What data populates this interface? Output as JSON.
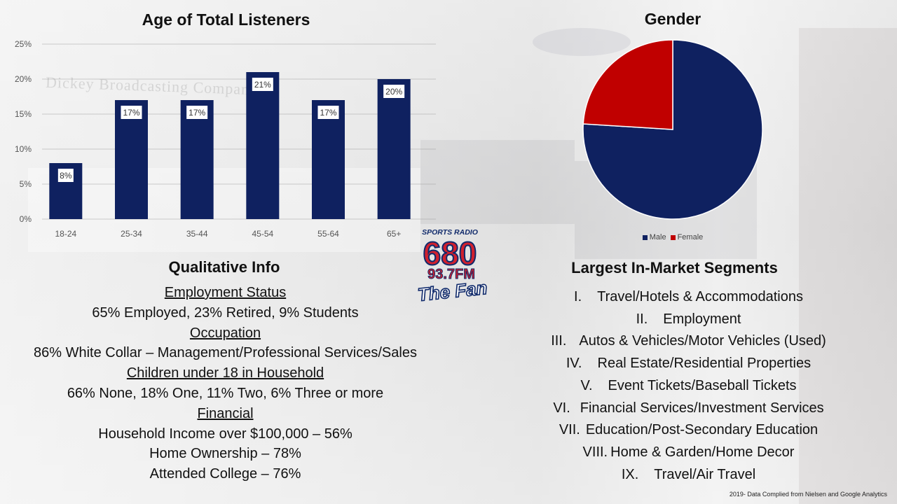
{
  "background_watermark": "Dickey Broadcasting Company",
  "chart_data": [
    {
      "type": "bar",
      "title": "Age of Total Listeners",
      "categories": [
        "18-24",
        "25-34",
        "35-44",
        "45-54",
        "55-64",
        "65+"
      ],
      "values": [
        8,
        17,
        17,
        21,
        17,
        20
      ],
      "data_labels": [
        "8%",
        "17%",
        "17%",
        "21%",
        "17%",
        "20%"
      ],
      "yticks": [
        "0%",
        "5%",
        "10%",
        "15%",
        "20%",
        "25%"
      ],
      "ylim": [
        0,
        25
      ],
      "grid": true,
      "color": "#0f2160"
    },
    {
      "type": "pie",
      "title": "Gender",
      "labels": [
        "Male",
        "Female"
      ],
      "values": [
        76,
        24
      ],
      "colors": [
        "#0f2160",
        "#c00000"
      ],
      "legend_position": "bottom"
    }
  ],
  "qualitative": {
    "heading": "Qualitative Info",
    "employment_heading": "Employment Status",
    "employment": "65% Employed, 23% Retired, 9% Students",
    "occupation_heading": "Occupation",
    "occupation": "86% White Collar – Management/Professional Services/Sales",
    "children_heading": "Children under 18 in Household",
    "children": "66% None, 18% One, 11% Two, 6% Three or more",
    "financial_heading": "Financial",
    "income": "Household Income over $100,000 – 56%",
    "home": "Home Ownership – 78%",
    "college": "Attended College – 76%"
  },
  "segments": {
    "heading": "Largest In-Market Segments",
    "items": [
      {
        "num": "I.",
        "label": "Travel/Hotels & Accommodations"
      },
      {
        "num": "II.",
        "label": "Employment"
      },
      {
        "num": "III.",
        "label": "Autos & Vehicles/Motor Vehicles (Used)"
      },
      {
        "num": "IV.",
        "label": "Real Estate/Residential Properties"
      },
      {
        "num": "V.",
        "label": "Event Tickets/Baseball Tickets"
      },
      {
        "num": "VI.",
        "label": "Financial Services/Investment Services"
      },
      {
        "num": "VII.",
        "label": "Education/Post-Secondary Education"
      },
      {
        "num": "VIII.",
        "label": "Home & Garden/Home Decor"
      },
      {
        "num": "IX.",
        "label": "Travel/Air Travel"
      }
    ]
  },
  "logo": {
    "top": "SPORTS RADIO",
    "number": "680",
    "freq": "93.7FM",
    "tagline": "The Fan",
    "colors": {
      "red": "#d0202e",
      "navy": "#102a6b"
    }
  },
  "footer": "2019- Data Complied from Nielsen and Google Analytics"
}
